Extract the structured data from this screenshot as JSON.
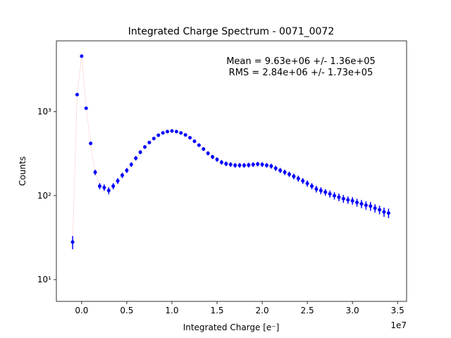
{
  "chart_data": {
    "type": "errorbar_scatter",
    "title": "Integrated Charge Spectrum - 0071_0072",
    "xlabel": "Integrated Charge [e⁻]",
    "ylabel": "Counts",
    "x_offset_label": "1e7",
    "annotations": [
      "Mean = 9.63e+06 +/- 1.36e+05",
      "RMS = 2.84e+06 +/- 1.73e+05"
    ],
    "yscale": "log",
    "color": "#0000ff",
    "line_color": "#ff9999",
    "xlim": [
      -2800000,
      36000000
    ],
    "ylim": [
      5.5,
      7000
    ],
    "xticks": [
      {
        "value": 0,
        "label": "0.0"
      },
      {
        "value": 5000000,
        "label": "0.5"
      },
      {
        "value": 10000000,
        "label": "1.0"
      },
      {
        "value": 15000000,
        "label": "1.5"
      },
      {
        "value": 20000000,
        "label": "2.0"
      },
      {
        "value": 25000000,
        "label": "2.5"
      },
      {
        "value": 30000000,
        "label": "3.0"
      },
      {
        "value": 35000000,
        "label": "3.5"
      }
    ],
    "yticks": [
      {
        "value": 10,
        "label": "10¹"
      },
      {
        "value": 100,
        "label": "10²"
      },
      {
        "value": 1000,
        "label": "10³"
      }
    ],
    "x": [
      -1000000,
      -500000,
      0,
      500000,
      1000000,
      1500000,
      2000000,
      2500000,
      3000000,
      3500000,
      4000000,
      4500000,
      5000000,
      5500000,
      6000000,
      6500000,
      7000000,
      7500000,
      8000000,
      8500000,
      9000000,
      9500000,
      10000000,
      10500000,
      11000000,
      11500000,
      12000000,
      12500000,
      13000000,
      13500000,
      14000000,
      14500000,
      15000000,
      15500000,
      16000000,
      16500000,
      17000000,
      17500000,
      18000000,
      18500000,
      19000000,
      19500000,
      20000000,
      20500000,
      21000000,
      21500000,
      22000000,
      22500000,
      23000000,
      23500000,
      24000000,
      24500000,
      25000000,
      25500000,
      26000000,
      26500000,
      27000000,
      27500000,
      28000000,
      28500000,
      29000000,
      29500000,
      30000000,
      30500000,
      31000000,
      31500000,
      32000000,
      32500000,
      33000000,
      33500000,
      34000000
    ],
    "values": [
      28,
      1600,
      4600,
      1100,
      420,
      190,
      130,
      125,
      115,
      130,
      150,
      175,
      200,
      235,
      280,
      330,
      380,
      430,
      480,
      525,
      560,
      580,
      590,
      580,
      560,
      530,
      490,
      445,
      400,
      360,
      320,
      290,
      270,
      250,
      240,
      235,
      230,
      230,
      230,
      232,
      235,
      238,
      235,
      230,
      225,
      212,
      200,
      190,
      180,
      170,
      160,
      150,
      140,
      130,
      120,
      115,
      110,
      105,
      100,
      96,
      92,
      89,
      87,
      83,
      80,
      77,
      75,
      71,
      68,
      64,
      62
    ],
    "errors": [
      5,
      40,
      68,
      33,
      20,
      14,
      11,
      11,
      11,
      11,
      12,
      13,
      14,
      15,
      17,
      18,
      19,
      21,
      22,
      23,
      24,
      24,
      24,
      24,
      24,
      23,
      22,
      21,
      20,
      19,
      18,
      17,
      16,
      16,
      15,
      15,
      15,
      15,
      15,
      15,
      15,
      15,
      15,
      15,
      15,
      15,
      14,
      14,
      13,
      13,
      13,
      12,
      12,
      11,
      11,
      11,
      10,
      10,
      10,
      10,
      10,
      9,
      9,
      9,
      9,
      9,
      9,
      8,
      8,
      8,
      8
    ]
  }
}
